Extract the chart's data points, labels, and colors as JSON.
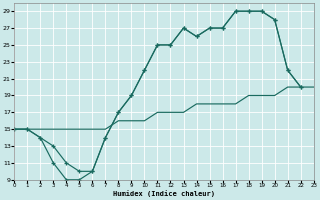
{
  "xlabel": "Humidex (Indice chaleur)",
  "bg_color": "#cce9e9",
  "grid_color": "#b8d8d8",
  "line_color": "#1a6b60",
  "xlim": [
    0,
    23
  ],
  "ylim": [
    9,
    30
  ],
  "xticks": [
    0,
    1,
    2,
    3,
    4,
    5,
    6,
    7,
    8,
    9,
    10,
    11,
    12,
    13,
    14,
    15,
    16,
    17,
    18,
    19,
    20,
    21,
    22,
    23
  ],
  "yticks": [
    9,
    11,
    13,
    15,
    17,
    19,
    21,
    23,
    25,
    27,
    29
  ],
  "curve1_x": [
    0,
    1,
    2,
    3,
    4,
    5,
    6,
    7,
    8,
    9,
    10,
    11,
    12,
    13,
    14,
    15,
    16,
    17,
    18,
    19,
    20,
    21,
    22
  ],
  "curve1_y": [
    15,
    15,
    14,
    11,
    9,
    9,
    10,
    14,
    17,
    19,
    22,
    25,
    25,
    27,
    26,
    27,
    27,
    29,
    29,
    29,
    28,
    22,
    20
  ],
  "curve2_x": [
    0,
    1,
    2,
    3,
    4,
    5,
    6,
    7,
    8,
    9,
    10,
    11,
    12,
    13,
    14,
    15,
    16,
    17,
    18,
    19,
    20,
    21,
    22
  ],
  "curve2_y": [
    15,
    15,
    14,
    13,
    11,
    10,
    10,
    14,
    17,
    19,
    22,
    25,
    25,
    27,
    26,
    27,
    27,
    29,
    29,
    29,
    28,
    22,
    20
  ],
  "line3_x": [
    0,
    1,
    2,
    3,
    4,
    5,
    6,
    7,
    8,
    9,
    10,
    11,
    12,
    13,
    14,
    15,
    16,
    17,
    18,
    19,
    20,
    21,
    22,
    23
  ],
  "line3_y": [
    15,
    15,
    15,
    15,
    15,
    15,
    15,
    15,
    16,
    16,
    16,
    17,
    17,
    17,
    18,
    18,
    18,
    18,
    19,
    19,
    19,
    20,
    20,
    20
  ]
}
